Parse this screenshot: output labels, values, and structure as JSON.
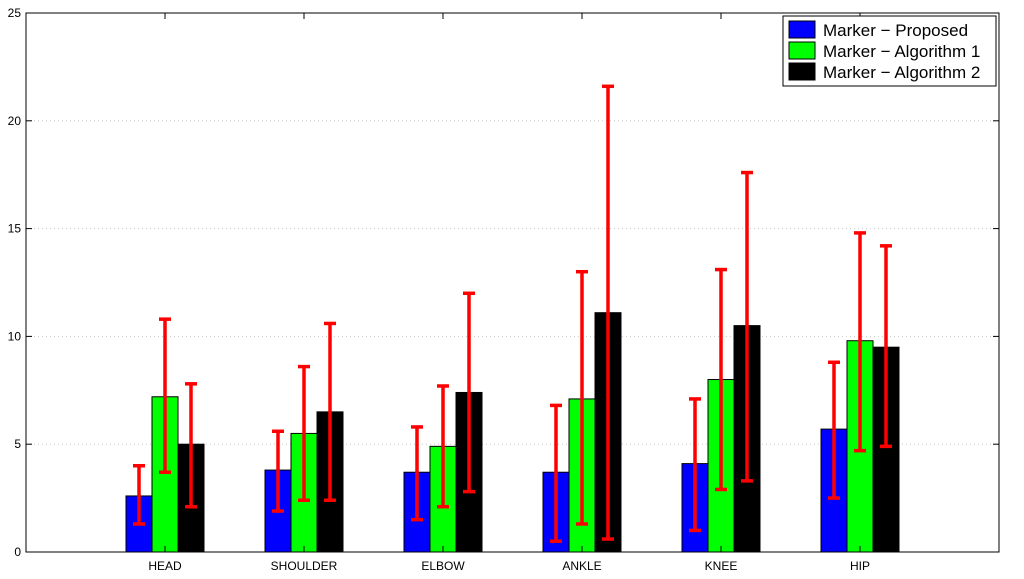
{
  "chart_data": {
    "type": "bar",
    "title": "",
    "xlabel": "",
    "ylabel": "",
    "ylim": [
      0,
      25
    ],
    "yticks": [
      0,
      5,
      10,
      15,
      20,
      25
    ],
    "grid": "horizontal dotted",
    "legend_position": "top-right",
    "categories": [
      "HEAD",
      "SHOULDER",
      "ELBOW",
      "ANKLE",
      "KNEE",
      "HIP"
    ],
    "series": [
      {
        "name": "Marker − Proposed",
        "color": "#0000ff",
        "values": [
          2.6,
          3.8,
          3.7,
          3.7,
          4.1,
          5.7
        ],
        "error_low": [
          1.3,
          1.9,
          1.5,
          0.5,
          1.0,
          2.5
        ],
        "error_high": [
          4.0,
          5.6,
          5.8,
          6.8,
          7.1,
          8.8
        ]
      },
      {
        "name": "Marker − Algorithm 1",
        "color": "#00ff00",
        "values": [
          7.2,
          5.5,
          4.9,
          7.1,
          8.0,
          9.8
        ],
        "error_low": [
          3.7,
          2.4,
          2.1,
          1.3,
          2.9,
          4.7
        ],
        "error_high": [
          10.8,
          8.6,
          7.7,
          13.0,
          13.1,
          14.8
        ]
      },
      {
        "name": "Marker − Algorithm 2",
        "color": "#000000",
        "values": [
          5.0,
          6.5,
          7.4,
          11.1,
          10.5,
          9.5
        ],
        "error_low": [
          2.1,
          2.4,
          2.8,
          0.6,
          3.3,
          4.9
        ],
        "error_high": [
          7.8,
          10.6,
          12.0,
          21.6,
          17.6,
          14.2
        ]
      }
    ],
    "error_bar_color": "#ff0000"
  }
}
